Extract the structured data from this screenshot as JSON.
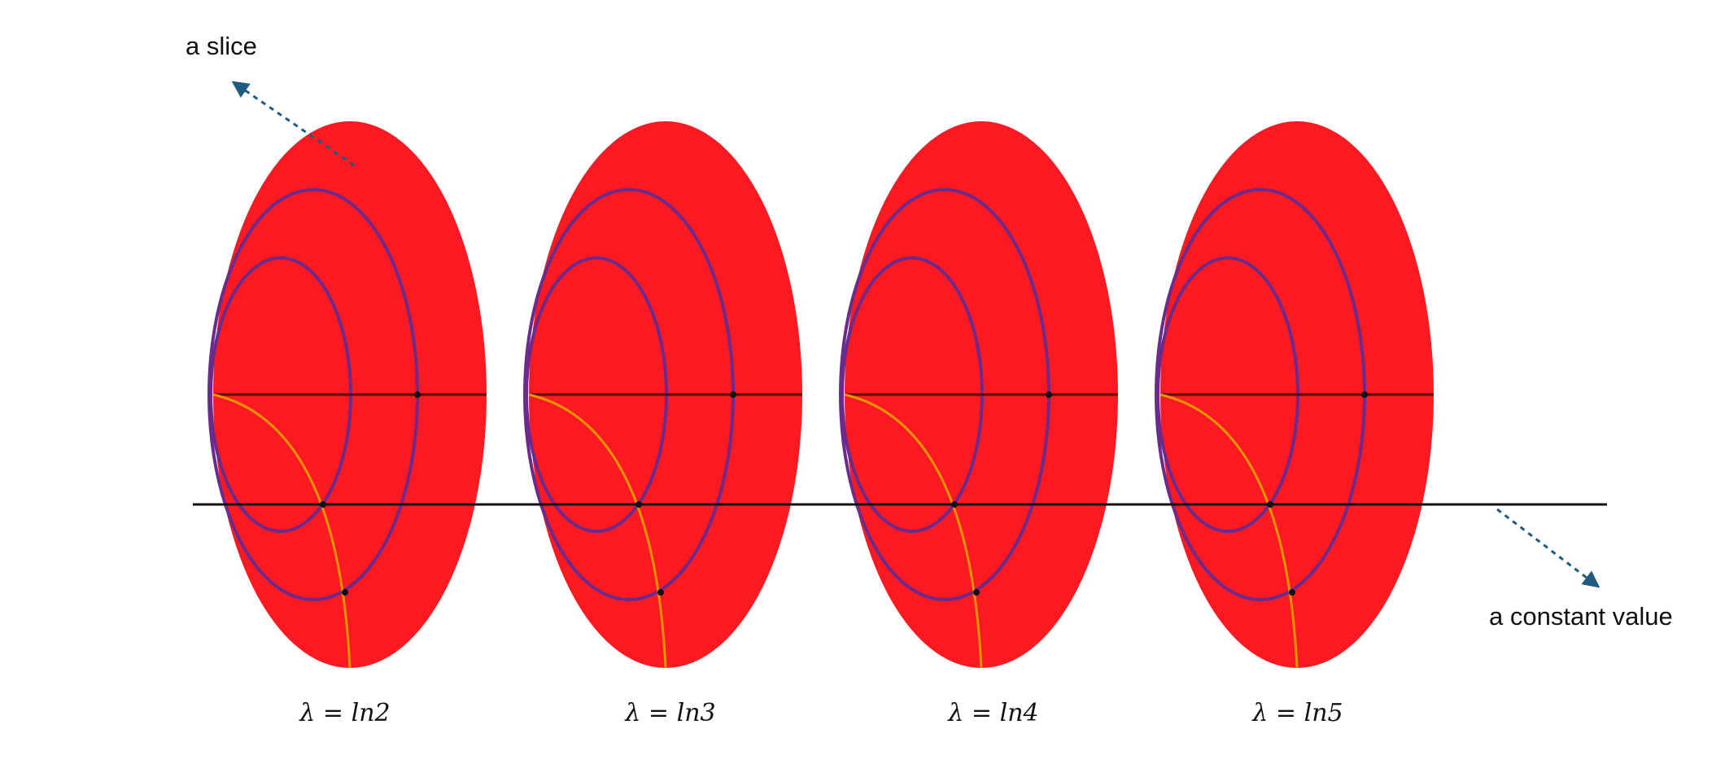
{
  "annotations": {
    "slice_label": "a slice",
    "constant_label": "a constant value"
  },
  "slices": [
    {
      "lambda_label": "λ = ln2"
    },
    {
      "lambda_label": "λ = ln3"
    },
    {
      "lambda_label": "λ = ln4"
    },
    {
      "lambda_label": "λ = ln5"
    }
  ],
  "colors": {
    "slice_fill": "#fb1a22",
    "level_curve": "#6b2a8c",
    "orange_curve": "#e39400",
    "center_axis": "#5a0a0a",
    "constant_line": "#111111",
    "arrow": "#1f5a80"
  }
}
